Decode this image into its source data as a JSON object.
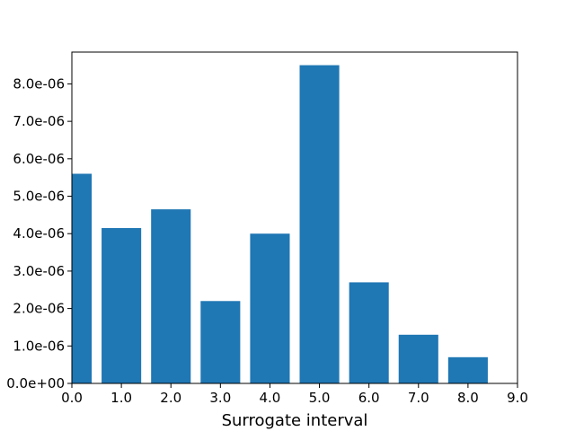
{
  "chart_data": {
    "type": "bar",
    "title": "",
    "xlabel": "Surrogate interval",
    "ylabel": "",
    "xlim": [
      0,
      9
    ],
    "ylim": [
      0,
      8.85e-06
    ],
    "grid": false,
    "bar_color": "#1f77b4",
    "x": [
      0,
      1,
      2,
      3,
      4,
      5,
      6,
      7,
      8
    ],
    "values": [
      5.6e-06,
      4.15e-06,
      4.65e-06,
      2.2e-06,
      4e-06,
      8.5e-06,
      2.7e-06,
      1.3e-06,
      7e-07
    ],
    "x_ticks": [
      0,
      1,
      2,
      3,
      4,
      5,
      6,
      7,
      8,
      9
    ],
    "x_tick_labels": [
      "0.0",
      "1.0",
      "2.0",
      "3.0",
      "4.0",
      "5.0",
      "6.0",
      "7.0",
      "8.0",
      "9.0"
    ],
    "y_ticks": [
      0,
      1e-06,
      2e-06,
      3e-06,
      4e-06,
      5e-06,
      6e-06,
      7e-06,
      8e-06
    ],
    "y_tick_labels": [
      "0.0e+00",
      "1.0e-06",
      "2.0e-06",
      "3.0e-06",
      "4.0e-06",
      "5.0e-06",
      "6.0e-06",
      "7.0e-06",
      "8.0e-06"
    ]
  }
}
